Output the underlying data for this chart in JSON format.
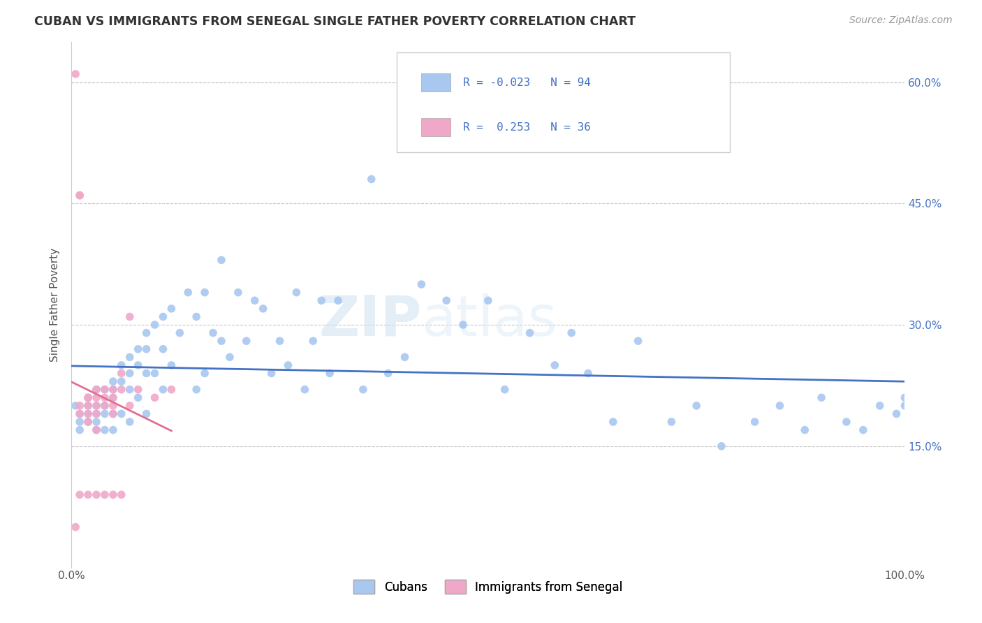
{
  "title": "CUBAN VS IMMIGRANTS FROM SENEGAL SINGLE FATHER POVERTY CORRELATION CHART",
  "source": "Source: ZipAtlas.com",
  "ylabel": "Single Father Poverty",
  "xlim": [
    0.0,
    1.0
  ],
  "ylim": [
    0.0,
    0.65
  ],
  "x_ticks": [
    0.0,
    0.2,
    0.4,
    0.6,
    0.8,
    1.0
  ],
  "x_tick_labels": [
    "0.0%",
    "",
    "",
    "",
    "",
    "100.0%"
  ],
  "y_ticks": [
    0.15,
    0.3,
    0.45,
    0.6
  ],
  "y_tick_labels": [
    "15.0%",
    "30.0%",
    "45.0%",
    "60.0%"
  ],
  "cubans_R": -0.023,
  "cubans_N": 94,
  "senegal_R": 0.253,
  "senegal_N": 36,
  "blue_color": "#a8c8f0",
  "pink_color": "#f0a8c8",
  "blue_line_color": "#4472c4",
  "pink_line_color": "#e07090",
  "text_color": "#4472c4",
  "legend_label_cubans": "Cubans",
  "legend_label_senegal": "Immigrants from Senegal",
  "watermark_zip": "ZIP",
  "watermark_atlas": "atlas",
  "cubans_x": [
    0.005,
    0.01,
    0.01,
    0.01,
    0.02,
    0.02,
    0.02,
    0.02,
    0.03,
    0.03,
    0.03,
    0.03,
    0.03,
    0.04,
    0.04,
    0.04,
    0.04,
    0.05,
    0.05,
    0.05,
    0.05,
    0.05,
    0.06,
    0.06,
    0.06,
    0.07,
    0.07,
    0.07,
    0.07,
    0.08,
    0.08,
    0.08,
    0.09,
    0.09,
    0.09,
    0.09,
    0.1,
    0.1,
    0.11,
    0.11,
    0.11,
    0.12,
    0.12,
    0.13,
    0.14,
    0.15,
    0.15,
    0.16,
    0.16,
    0.17,
    0.18,
    0.18,
    0.19,
    0.2,
    0.21,
    0.22,
    0.23,
    0.24,
    0.25,
    0.26,
    0.27,
    0.28,
    0.29,
    0.3,
    0.31,
    0.32,
    0.35,
    0.36,
    0.38,
    0.4,
    0.42,
    0.45,
    0.47,
    0.5,
    0.52,
    0.55,
    0.58,
    0.6,
    0.62,
    0.65,
    0.68,
    0.72,
    0.75,
    0.78,
    0.82,
    0.85,
    0.88,
    0.9,
    0.93,
    0.95,
    0.97,
    0.99,
    1.0,
    1.0
  ],
  "cubans_y": [
    0.2,
    0.19,
    0.18,
    0.17,
    0.21,
    0.2,
    0.19,
    0.18,
    0.22,
    0.2,
    0.19,
    0.18,
    0.17,
    0.22,
    0.2,
    0.19,
    0.17,
    0.23,
    0.22,
    0.21,
    0.19,
    0.17,
    0.25,
    0.23,
    0.19,
    0.26,
    0.24,
    0.22,
    0.18,
    0.27,
    0.25,
    0.21,
    0.29,
    0.27,
    0.24,
    0.19,
    0.3,
    0.24,
    0.31,
    0.27,
    0.22,
    0.32,
    0.25,
    0.29,
    0.34,
    0.31,
    0.22,
    0.34,
    0.24,
    0.29,
    0.38,
    0.28,
    0.26,
    0.34,
    0.28,
    0.33,
    0.32,
    0.24,
    0.28,
    0.25,
    0.34,
    0.22,
    0.28,
    0.33,
    0.24,
    0.33,
    0.22,
    0.48,
    0.24,
    0.26,
    0.35,
    0.33,
    0.3,
    0.33,
    0.22,
    0.29,
    0.25,
    0.29,
    0.24,
    0.18,
    0.28,
    0.18,
    0.2,
    0.15,
    0.18,
    0.2,
    0.17,
    0.21,
    0.18,
    0.17,
    0.2,
    0.19,
    0.2,
    0.21
  ],
  "senegal_x": [
    0.005,
    0.005,
    0.01,
    0.01,
    0.01,
    0.01,
    0.01,
    0.02,
    0.02,
    0.02,
    0.02,
    0.02,
    0.02,
    0.03,
    0.03,
    0.03,
    0.03,
    0.03,
    0.03,
    0.04,
    0.04,
    0.04,
    0.04,
    0.05,
    0.05,
    0.05,
    0.05,
    0.05,
    0.06,
    0.06,
    0.06,
    0.07,
    0.07,
    0.08,
    0.1,
    0.12
  ],
  "senegal_y": [
    0.61,
    0.05,
    0.46,
    0.46,
    0.2,
    0.19,
    0.09,
    0.21,
    0.21,
    0.2,
    0.19,
    0.18,
    0.09,
    0.22,
    0.21,
    0.2,
    0.19,
    0.17,
    0.09,
    0.22,
    0.21,
    0.2,
    0.09,
    0.22,
    0.21,
    0.2,
    0.19,
    0.09,
    0.24,
    0.22,
    0.09,
    0.31,
    0.2,
    0.22,
    0.21,
    0.22
  ]
}
